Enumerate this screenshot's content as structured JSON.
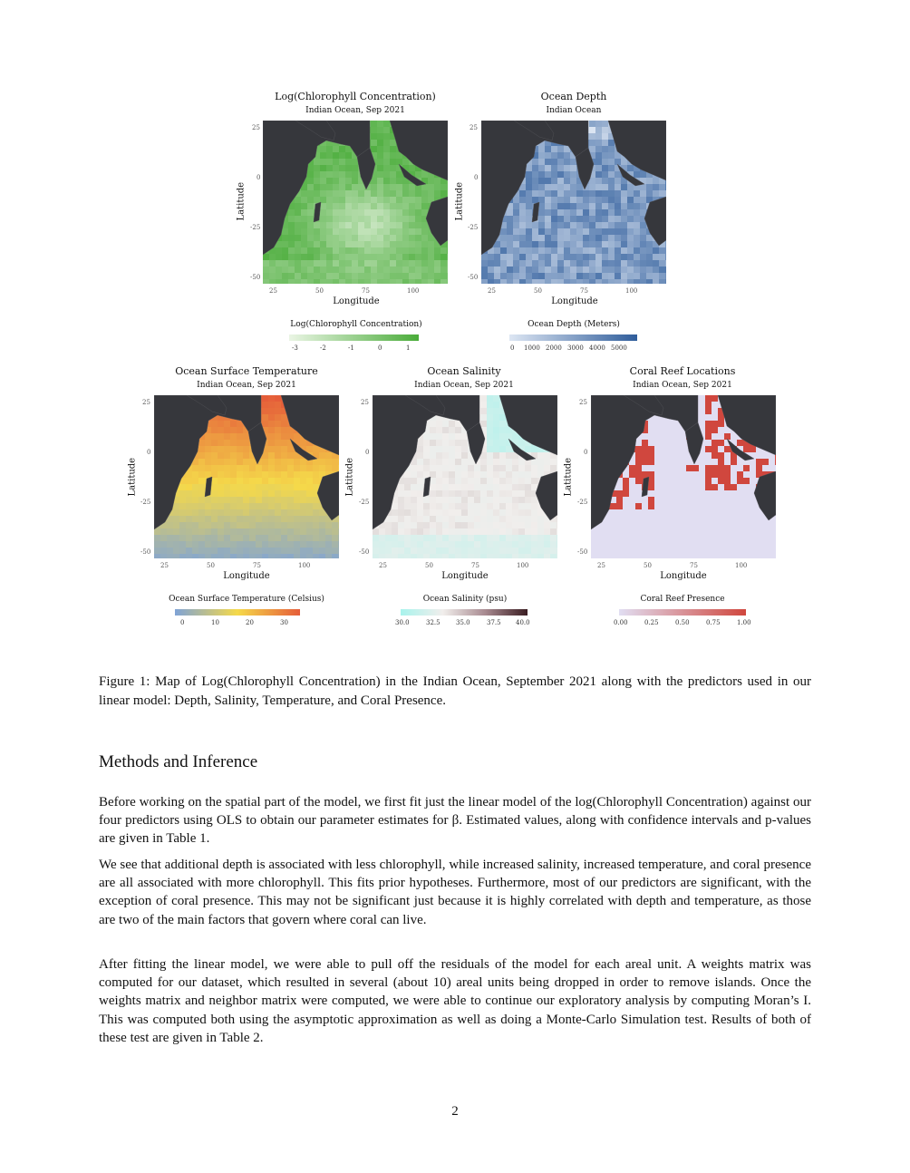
{
  "panels": [
    {
      "id": "chl",
      "title": "Log(Chlorophyll Concentration)",
      "subtitle": "Indian Ocean, Sep 2021",
      "xlabel": "Longitude",
      "ylabel": "Latitude",
      "xticks": [
        "25",
        "50",
        "75",
        "100"
      ],
      "yticks": [
        "25",
        "0",
        "-25",
        "-50"
      ],
      "legend_title": "Log(Chlorophyll Concentration)",
      "legend_ticks": [
        "-3",
        "-2",
        "-1",
        "0",
        "1"
      ],
      "colors": [
        "#eaf5e4",
        "#4aac3a"
      ]
    },
    {
      "id": "depth",
      "title": "Ocean Depth",
      "subtitle": "Indian Ocean",
      "xlabel": "Longitude",
      "ylabel": "Latitude",
      "xticks": [
        "25",
        "50",
        "75",
        "100"
      ],
      "yticks": [
        "25",
        "0",
        "-25",
        "-50"
      ],
      "legend_title": "Ocean Depth (Meters)",
      "legend_ticks": [
        "0",
        "1000",
        "2000",
        "3000",
        "4000",
        "5000"
      ],
      "colors": [
        "#dde6f3",
        "#2f5d9b"
      ]
    },
    {
      "id": "sst",
      "title": "Ocean Surface Temperature",
      "subtitle": "Indian Ocean, Sep 2021",
      "xlabel": "Longitude",
      "ylabel": "Latitude",
      "xticks": [
        "25",
        "50",
        "75",
        "100"
      ],
      "yticks": [
        "25",
        "0",
        "-25",
        "-50"
      ],
      "legend_title": "Ocean Surface Temperature (Celsius)",
      "legend_ticks": [
        "0",
        "10",
        "20",
        "30"
      ],
      "colors": [
        "#7fa3d6",
        "#f5d94a",
        "#e55d39"
      ]
    },
    {
      "id": "sal",
      "title": "Ocean Salinity",
      "subtitle": "Indian Ocean, Sep 2021",
      "xlabel": "Longitude",
      "ylabel": "Latitude",
      "xticks": [
        "25",
        "50",
        "75",
        "100"
      ],
      "yticks": [
        "25",
        "0",
        "-25",
        "-50"
      ],
      "legend_title": "Ocean Salinity (psu)",
      "legend_ticks": [
        "30.0",
        "32.5",
        "35.0",
        "37.5",
        "40.0"
      ],
      "colors": [
        "#a8f3ec",
        "#f1eeec",
        "#3b1d22"
      ]
    },
    {
      "id": "coral",
      "title": "Coral Reef Locations",
      "subtitle": "Indian Ocean, Sep 2021",
      "xlabel": "Longitude",
      "ylabel": "Latitude",
      "xticks": [
        "25",
        "50",
        "75",
        "100"
      ],
      "yticks": [
        "25",
        "0",
        "-25",
        "-50"
      ],
      "legend_title": "Coral Reef Presence",
      "legend_ticks": [
        "0.00",
        "0.25",
        "0.50",
        "0.75",
        "1.00"
      ],
      "colors": [
        "#e1def2",
        "#d0473e"
      ]
    }
  ],
  "caption": "Figure 1: Map of Log(Chlorophyll Concentration) in the Indian Ocean, September 2021 along with the predictors used in our linear model: Depth, Salinity, Temperature, and Coral Presence.",
  "section_title": "Methods and Inference",
  "paragraphs": [
    "Before working on the spatial part of the model, we first fit just the linear model of the log(Chlorophyll Concentration) against our four predictors using OLS to obtain our parameter estimates for β. Estimated values, along with confidence intervals and p-values are given in Table 1.",
    "We see that additional depth is associated with less chlorophyll, while increased salinity, increased temperature, and coral presence are all associated with more chlorophyll. This fits prior hypotheses. Furthermore, most of our predictors are significant, with the exception of coral presence. This may not be significant just because it is highly correlated with depth and temperature, as those are two of the main factors that govern where coral can live.",
    "After fitting the linear model, we were able to pull off the residuals of the model for each areal unit. A weights matrix was computed for our dataset, which resulted in several (about 10) areal units being dropped in order to remove islands. Once the weights matrix and neighbor matrix were computed, we were able to continue our exploratory analysis by computing Moran’s I. This was computed both using the asymptotic approximation as well as doing a Monte-Carlo Simulation test. Results of both of these test are given in Table 2."
  ],
  "page_number": "2"
}
